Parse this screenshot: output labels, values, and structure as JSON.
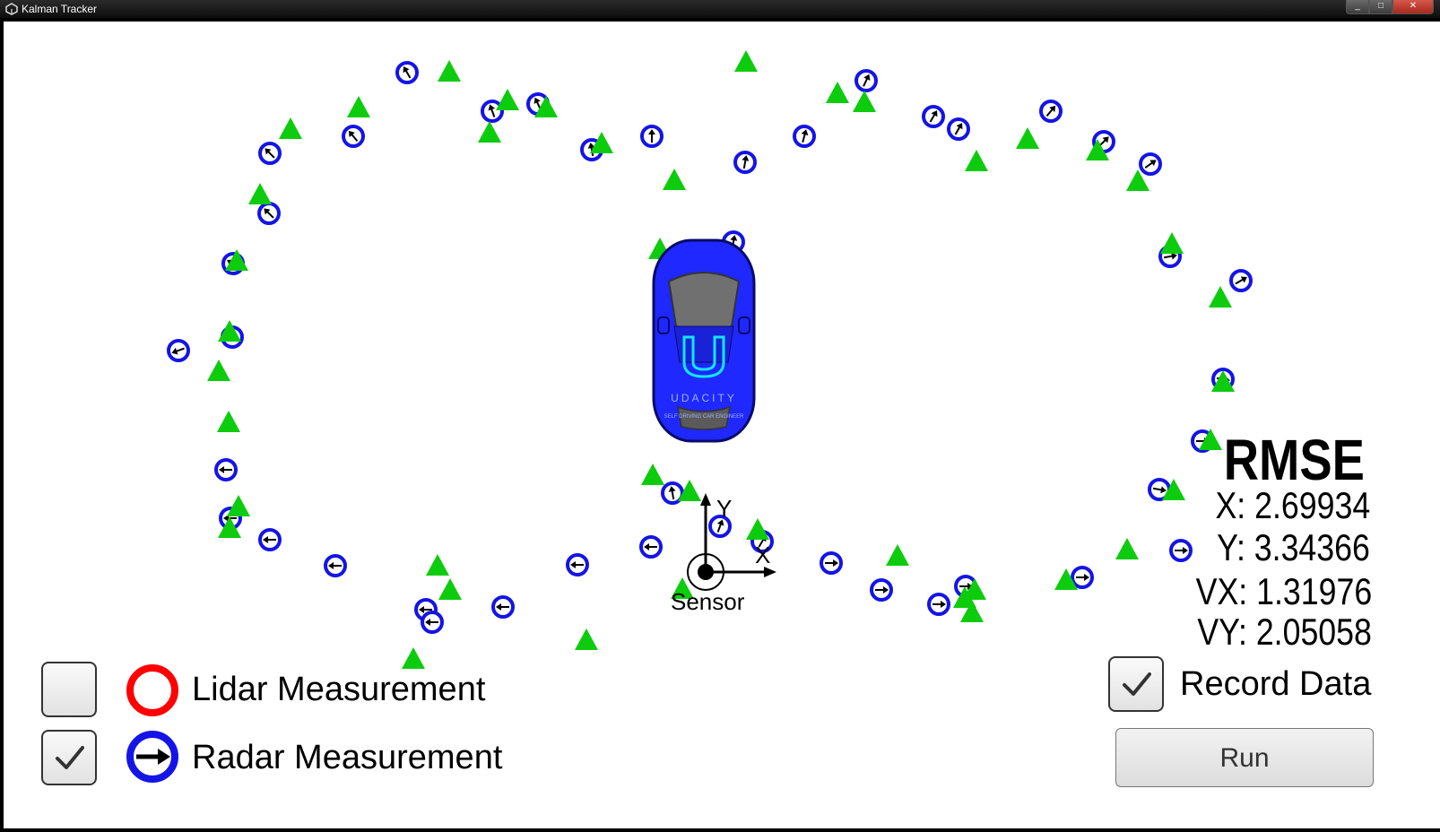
{
  "window": {
    "title": "Kalman Tracker",
    "controls": [
      "_",
      "□",
      "✕"
    ]
  },
  "scene": {
    "axis": {
      "x_label": "X",
      "y_label": "Y",
      "origin_label": "Sensor"
    },
    "colors": {
      "lidar": "#ff0000",
      "radar": "#1414e6",
      "estimate": "#0dcc0d",
      "car": "#1e28ff"
    },
    "car_text": {
      "brand": "UDACITY",
      "tagline": "SELF DRIVING CAR ENGINEER"
    }
  },
  "legend": {
    "lidar": {
      "label": "Lidar Measurement",
      "checked": false
    },
    "radar": {
      "label": "Radar Measurement",
      "checked": true
    }
  },
  "rmse": {
    "title": "RMSE",
    "x": "X: 2.69934",
    "y": "Y: 3.34366",
    "vx": "VX: 1.31976",
    "vy": "VY: 2.05058"
  },
  "record": {
    "label": "Record Data",
    "checked": true
  },
  "run_button": {
    "label": "Run"
  }
}
